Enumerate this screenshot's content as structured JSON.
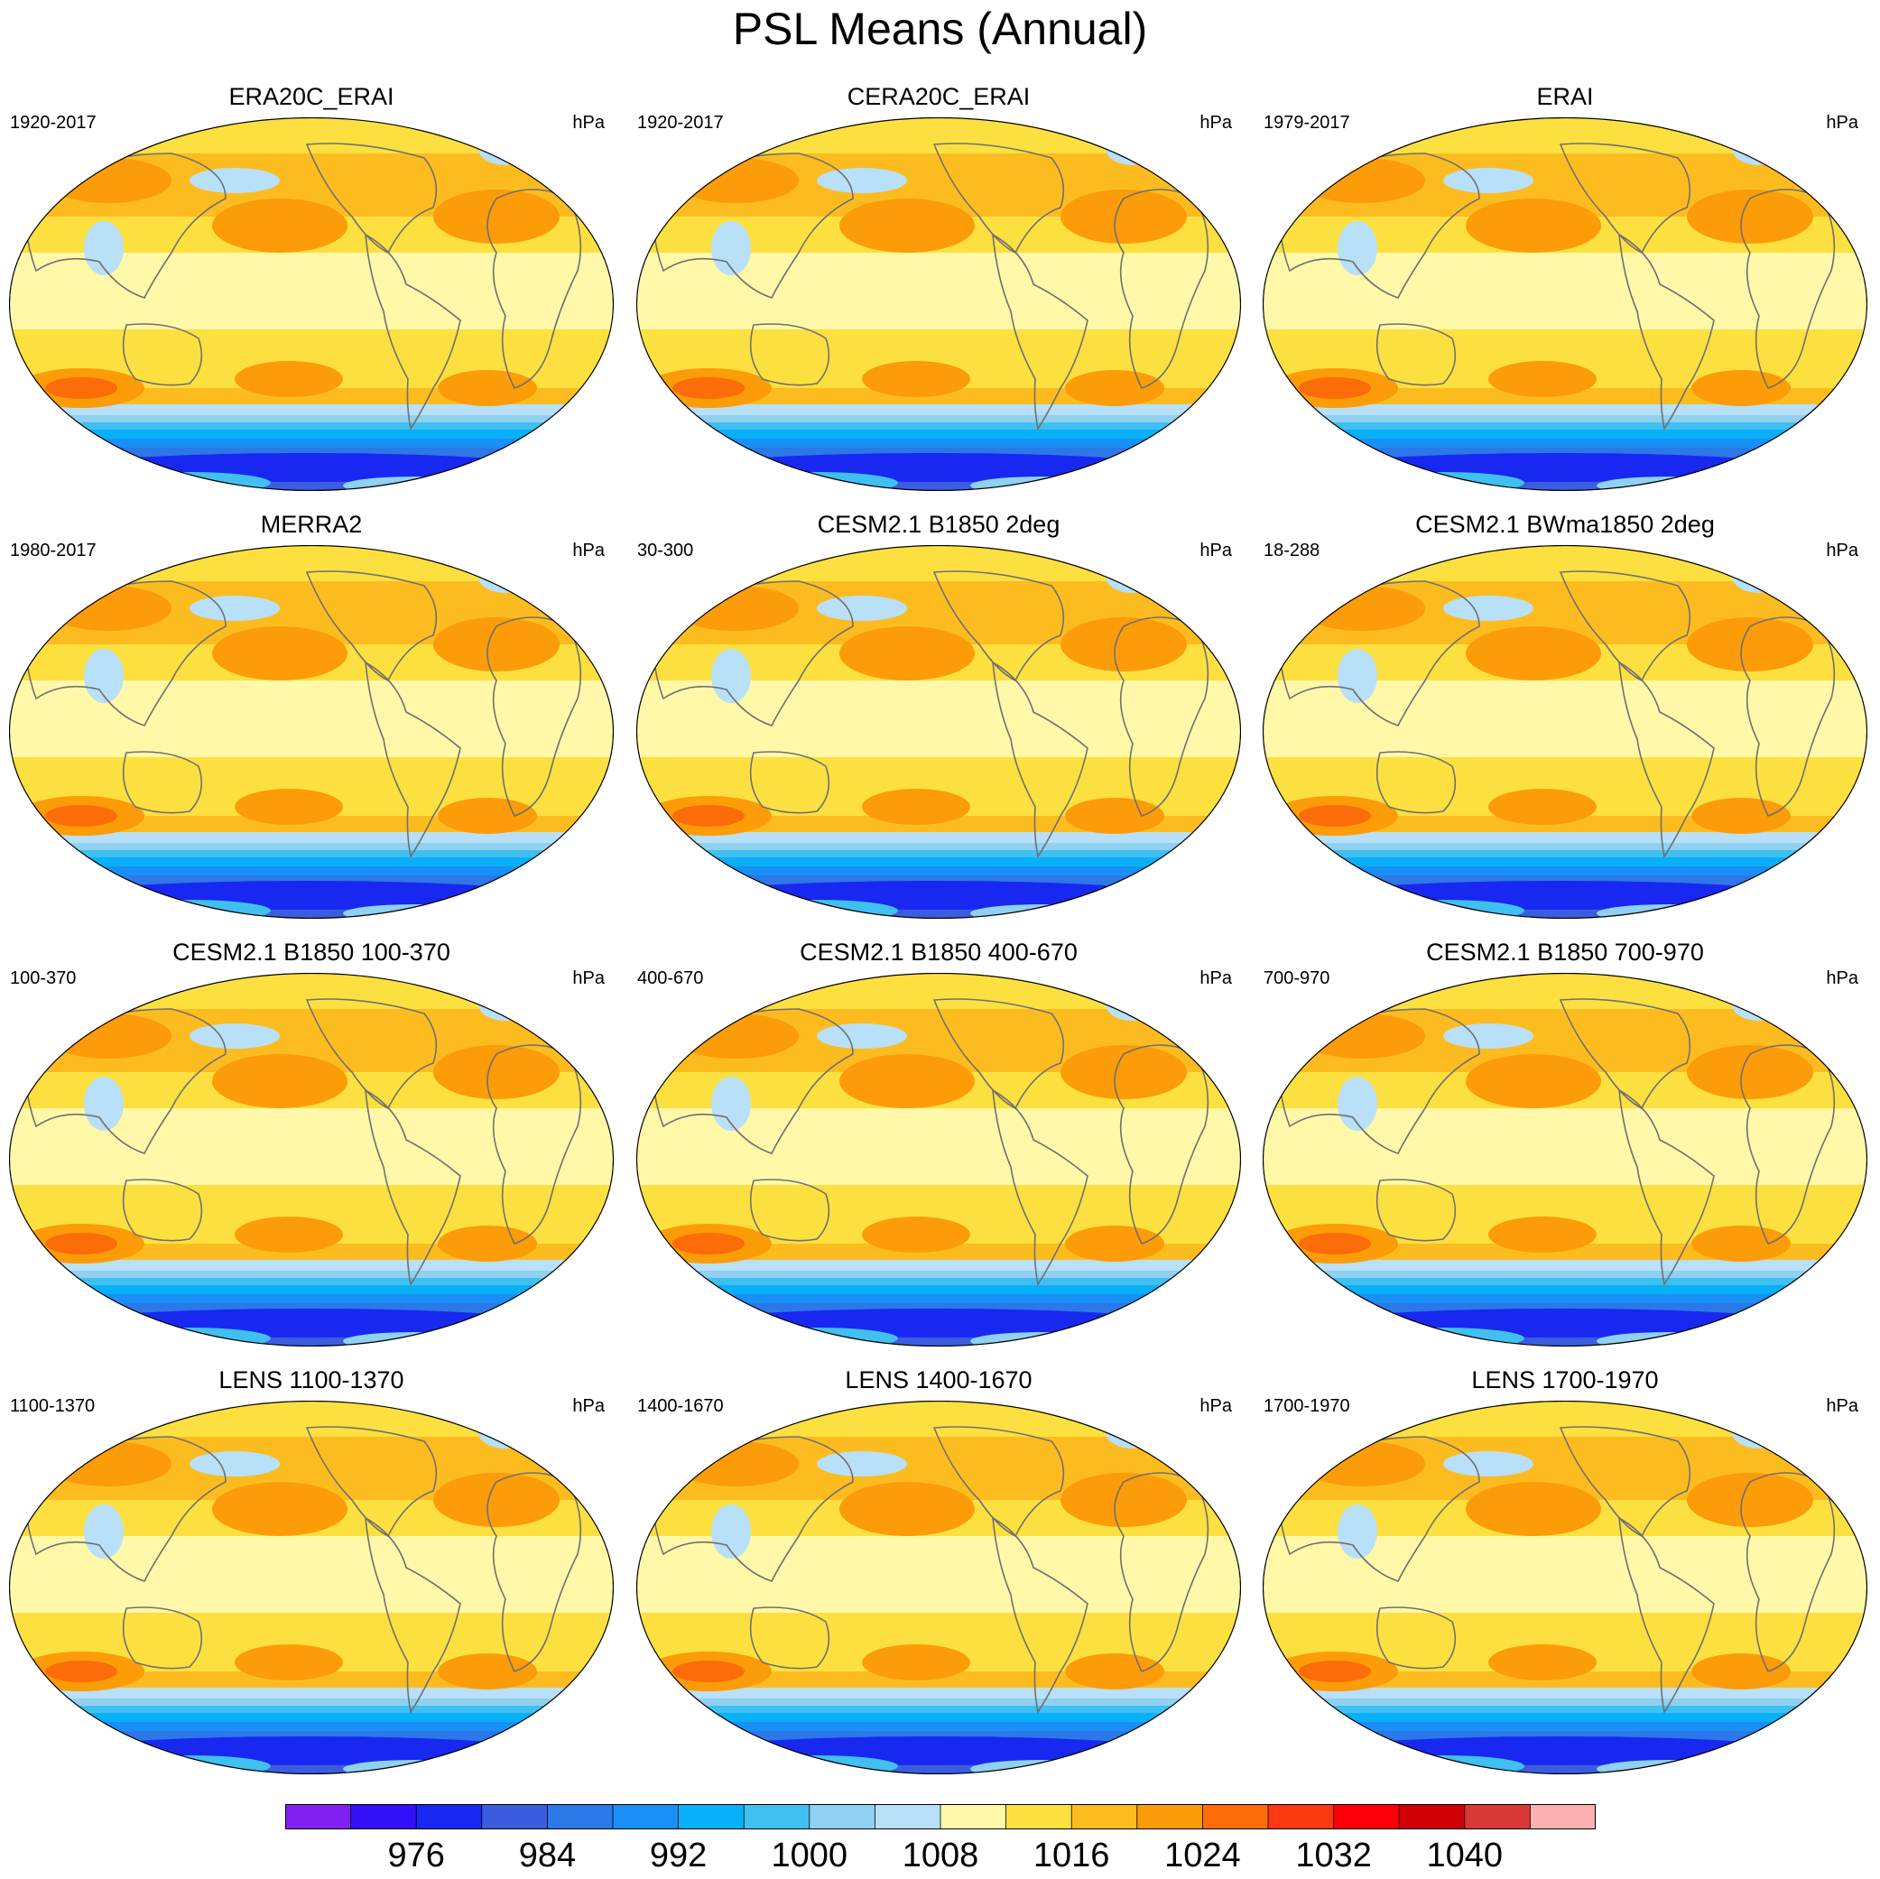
{
  "title": "PSL Means (Annual)",
  "unit": "hPa",
  "panels": [
    {
      "title": "ERA20C_ERAI",
      "period": "1920-2017"
    },
    {
      "title": "CERA20C_ERAI",
      "period": "1920-2017"
    },
    {
      "title": "ERAI",
      "period": "1979-2017"
    },
    {
      "title": "MERRA2",
      "period": "1980-2017"
    },
    {
      "title": "CESM2.1 B1850 2deg",
      "period": "30-300"
    },
    {
      "title": "CESM2.1 BWma1850 2deg",
      "period": "18-288"
    },
    {
      "title": "CESM2.1 B1850 100-370",
      "period": "100-370"
    },
    {
      "title": "CESM2.1 B1850 400-670",
      "period": "400-670"
    },
    {
      "title": "CESM2.1 B1850 700-970",
      "period": "700-970"
    },
    {
      "title": "LENS 1100-1370",
      "period": "1100-1370"
    },
    {
      "title": "LENS 1400-1670",
      "period": "1400-1670"
    },
    {
      "title": "LENS 1700-1970",
      "period": "1700-1970"
    }
  ],
  "colorbar": {
    "colors": [
      "#8020f0",
      "#3410f8",
      "#1828f0",
      "#3c5ce0",
      "#2c78e8",
      "#1890f8",
      "#08b0f8",
      "#40c0f0",
      "#90d0f0",
      "#b8e0f8",
      "#fff8a8",
      "#fce040",
      "#fcbc20",
      "#fc9c08",
      "#fc6c08",
      "#fc3810",
      "#fc0008",
      "#d00008",
      "#d83838",
      "#fcb0b0"
    ],
    "labels": [
      "976",
      "984",
      "992",
      "1000",
      "1008",
      "1016",
      "1024",
      "1032",
      "1040"
    ]
  }
}
